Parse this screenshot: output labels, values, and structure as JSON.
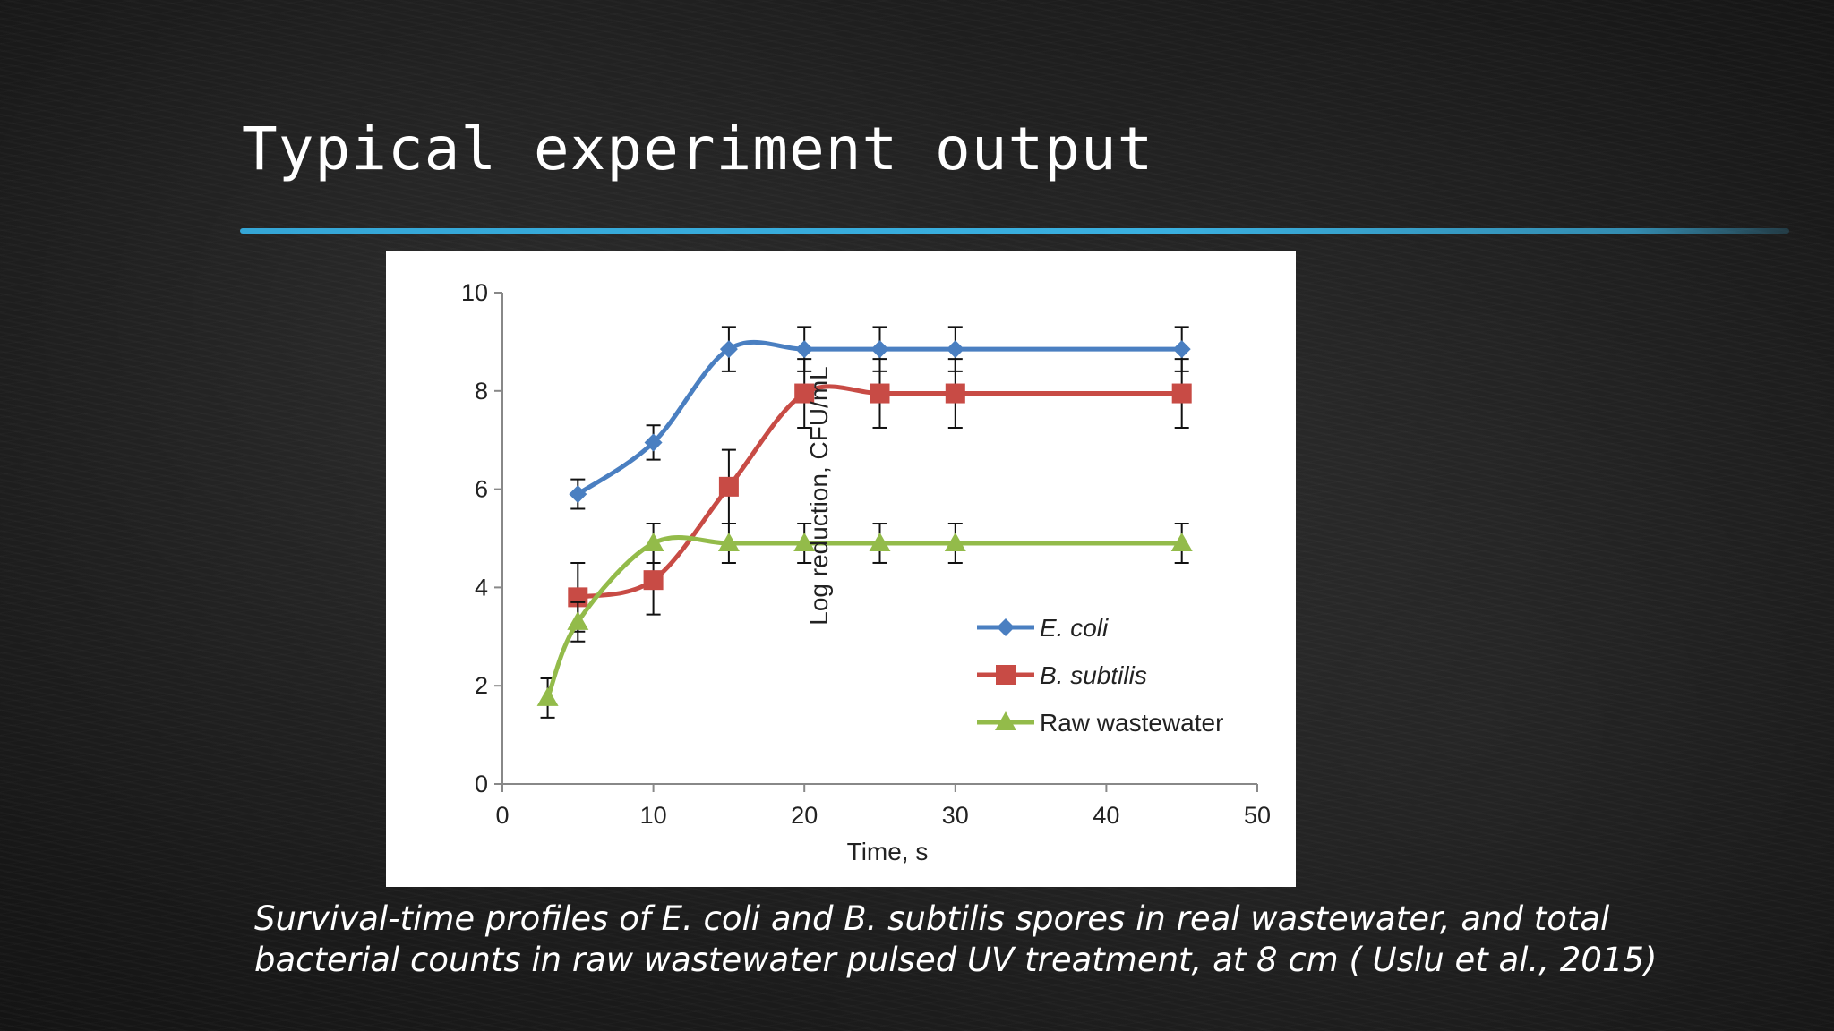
{
  "slide": {
    "title": "Typical experiment output",
    "caption_lines": [
      "Survival-time profiles of E. coli and B. subtilis spores in real wastewater, and total",
      "bacterial counts in raw wastewater pulsed UV treatment, at 8 cm ( Uslu et al., 2015)"
    ],
    "accent_color": "#3aabdc"
  },
  "chart_data": {
    "type": "line",
    "title": "",
    "xlabel": "Time, s",
    "ylabel": "Log reduction, CFU/mL",
    "xlim": [
      0,
      50
    ],
    "ylim": [
      0,
      10
    ],
    "xticks": [
      0,
      10,
      20,
      30,
      40,
      50
    ],
    "yticks": [
      0,
      2,
      4,
      6,
      8,
      10
    ],
    "legend_position": "bottom-right",
    "grid": false,
    "series": [
      {
        "name": "E. coli",
        "italic": true,
        "color": "#4a7fc1",
        "marker": "diamond",
        "x": [
          5,
          10,
          15,
          20,
          25,
          30,
          45
        ],
        "y": [
          5.9,
          6.95,
          8.85,
          8.85,
          8.85,
          8.85,
          8.85
        ],
        "err": [
          0.3,
          0.35,
          0.45,
          0.45,
          0.45,
          0.45,
          0.45
        ]
      },
      {
        "name": "B. subtilis",
        "italic": true,
        "color": "#c84b45",
        "marker": "square",
        "x": [
          5,
          10,
          15,
          20,
          25,
          30,
          45
        ],
        "y": [
          3.8,
          4.15,
          6.05,
          7.95,
          7.95,
          7.95,
          7.95
        ],
        "err": [
          0.7,
          0.7,
          0.75,
          0.7,
          0.7,
          0.7,
          0.7
        ]
      },
      {
        "name": "Raw wastewater",
        "italic": false,
        "color": "#93bb4a",
        "marker": "triangle",
        "x": [
          3,
          5,
          10,
          15,
          20,
          25,
          30,
          45
        ],
        "y": [
          1.75,
          3.3,
          4.9,
          4.9,
          4.9,
          4.9,
          4.9,
          4.9
        ],
        "err": [
          0.4,
          0.4,
          0.4,
          0.4,
          0.4,
          0.4,
          0.4,
          0.4
        ]
      }
    ]
  }
}
